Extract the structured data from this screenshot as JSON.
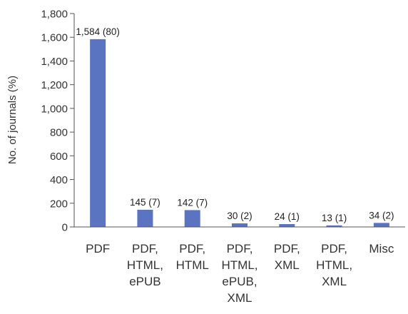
{
  "chart_data": {
    "type": "bar",
    "ylabel": "No. of journals (%)",
    "xlabel": "",
    "ylim": [
      0,
      1800
    ],
    "yticks": [
      "0",
      "200",
      "400",
      "600",
      "800",
      "1,000",
      "1,200",
      "1,400",
      "1,600",
      "1,800"
    ],
    "categories": [
      [
        "PDF"
      ],
      [
        "PDF,",
        "HTML,",
        "ePUB"
      ],
      [
        "PDF,",
        "HTML"
      ],
      [
        "PDF,",
        "HTML,",
        "ePUB,",
        "XML"
      ],
      [
        "PDF,",
        "XML"
      ],
      [
        "PDF,",
        "HTML,",
        "XML"
      ],
      [
        "Misc"
      ]
    ],
    "values": [
      1584,
      145,
      142,
      30,
      24,
      13,
      34
    ],
    "data_labels": [
      "1,584 (80)",
      "145 (7)",
      "142 (7)",
      "30 (2)",
      "24 (1)",
      "13 (1)",
      "34 (2)"
    ],
    "bar_color": "#5b74c2",
    "grid": false
  }
}
